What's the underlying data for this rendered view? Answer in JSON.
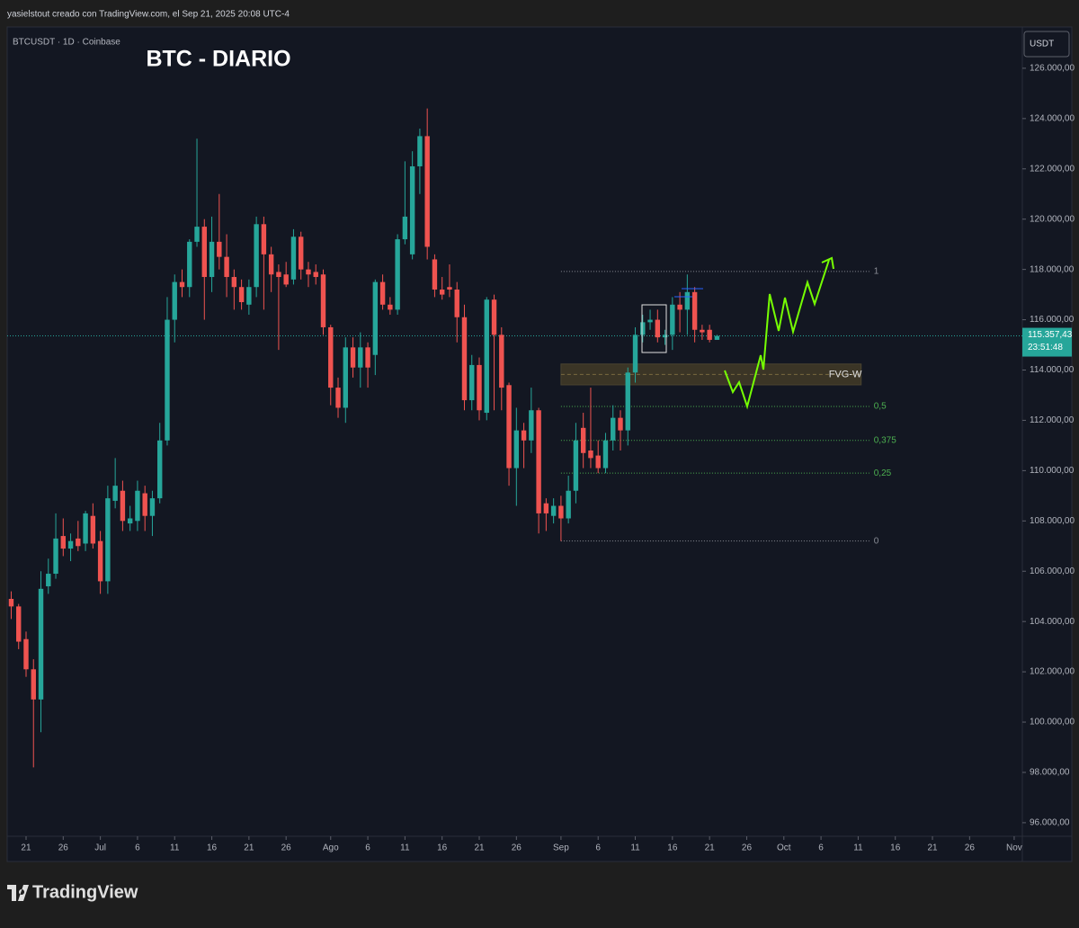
{
  "header": "yasielstout creado con TradingView.com, el Sep 21, 2025 20:08 UTC-4",
  "logo": "TradingView",
  "chart_data": {
    "type": "candlestick",
    "title": "BTC - DIARIO",
    "symbol": "BTCUSDT · 1D · Coinbase",
    "currency": "USDT",
    "up_color": "#26a69a",
    "down_color": "#ef5350",
    "grid": false,
    "xlim": [
      -0.54,
      136.1
    ],
    "ylim": [
      95460,
      127570
    ],
    "xticks": [
      {
        "value": 2,
        "label": "21"
      },
      {
        "value": 7,
        "label": "26"
      },
      {
        "value": 12,
        "label": "Jul"
      },
      {
        "value": 17,
        "label": "6"
      },
      {
        "value": 22,
        "label": "11"
      },
      {
        "value": 27,
        "label": "16"
      },
      {
        "value": 32,
        "label": "21"
      },
      {
        "value": 37,
        "label": "26"
      },
      {
        "value": 43,
        "label": "Ago"
      },
      {
        "value": 48,
        "label": "6"
      },
      {
        "value": 53,
        "label": "11"
      },
      {
        "value": 58,
        "label": "16"
      },
      {
        "value": 63,
        "label": "21"
      },
      {
        "value": 68,
        "label": "26"
      },
      {
        "value": 74,
        "label": "Sep"
      },
      {
        "value": 79,
        "label": "6"
      },
      {
        "value": 84,
        "label": "11"
      },
      {
        "value": 89,
        "label": "16"
      },
      {
        "value": 94,
        "label": "21"
      },
      {
        "value": 99,
        "label": "26"
      },
      {
        "value": 104,
        "label": "Oct"
      },
      {
        "value": 109,
        "label": "6"
      },
      {
        "value": 114,
        "label": "11"
      },
      {
        "value": 119,
        "label": "16"
      },
      {
        "value": 124,
        "label": "21"
      },
      {
        "value": 129,
        "label": "26"
      },
      {
        "value": 135,
        "label": "Nov"
      }
    ],
    "yticks": [
      {
        "value": 96000,
        "label": "96.000,00"
      },
      {
        "value": 98000,
        "label": "98.000,00"
      },
      {
        "value": 100000,
        "label": "100.000,00"
      },
      {
        "value": 102000,
        "label": "102.000,00"
      },
      {
        "value": 104000,
        "label": "104.000,00"
      },
      {
        "value": 106000,
        "label": "106.000,00"
      },
      {
        "value": 108000,
        "label": "108.000,00"
      },
      {
        "value": 110000,
        "label": "110.000,00"
      },
      {
        "value": 112000,
        "label": "112.000,00"
      },
      {
        "value": 114000,
        "label": "114.000,00"
      },
      {
        "value": 116000,
        "label": "116.000,00"
      },
      {
        "value": 118000,
        "label": "118.000,00"
      },
      {
        "value": 120000,
        "label": "120.000,00"
      },
      {
        "value": 122000,
        "label": "122.000,00"
      },
      {
        "value": 124000,
        "label": "124.000,00"
      },
      {
        "value": 126000,
        "label": "126.000,00"
      }
    ],
    "open": [
      104900,
      104600,
      103300,
      102100,
      100900,
      105400,
      105900,
      107400,
      106900,
      107300,
      107100,
      108200,
      107200,
      105600,
      108800,
      109200,
      107900,
      108000,
      109100,
      108200,
      108900,
      111200,
      116000,
      117500,
      117300,
      119100,
      119700,
      117700,
      119100,
      118500,
      117700,
      117300,
      116600,
      117300,
      119800,
      118600,
      117900,
      117800,
      117600,
      119300,
      118000,
      117900,
      117800,
      115700,
      113300,
      112500,
      114900,
      114100,
      114900,
      114600,
      117500,
      116600,
      116400,
      119200,
      118600,
      122100,
      123300,
      118400,
      117200,
      117300,
      117200,
      116100,
      112800,
      114200,
      112300,
      116800,
      115400,
      113400,
      110100,
      111600,
      111200,
      112400,
      108700,
      108200,
      108600,
      108100,
      109200,
      111700,
      110800,
      110600,
      110100,
      111200,
      112100,
      111600,
      113900,
      115400,
      115900,
      116000,
      115300,
      115400,
      116600,
      116400,
      117100,
      115600,
      115600,
      115200
    ],
    "high": [
      105200,
      104700,
      103600,
      102500,
      106000,
      106500,
      108300,
      108100,
      107500,
      108000,
      108400,
      108700,
      107600,
      109400,
      110500,
      109600,
      108600,
      109600,
      109400,
      109200,
      111900,
      116900,
      117800,
      118000,
      119200,
      123200,
      120000,
      120100,
      121000,
      119400,
      118000,
      117600,
      117600,
      120100,
      120100,
      118900,
      118200,
      118300,
      119600,
      119500,
      118300,
      118200,
      118000,
      115800,
      113700,
      115300,
      115300,
      115500,
      115100,
      117600,
      117800,
      116900,
      119400,
      122300,
      122700,
      123600,
      124400,
      118600,
      117700,
      118200,
      117500,
      116600,
      114600,
      114500,
      116900,
      117000,
      115700,
      113500,
      112500,
      111900,
      113300,
      112500,
      108900,
      108900,
      109000,
      109800,
      111900,
      112300,
      113300,
      111200,
      111500,
      112600,
      112400,
      114100,
      115700,
      116200,
      116400,
      116400,
      115600,
      116900,
      117100,
      117800,
      117300,
      115800,
      115800,
      115400
    ],
    "low": [
      104100,
      102900,
      101800,
      98200,
      99600,
      105100,
      105700,
      106600,
      106400,
      106800,
      106800,
      106900,
      105100,
      105100,
      108500,
      107600,
      107600,
      107600,
      107600,
      107400,
      108700,
      111000,
      115100,
      116900,
      116900,
      118900,
      116000,
      117100,
      118000,
      116900,
      116400,
      116400,
      116200,
      116900,
      116400,
      117100,
      114800,
      117300,
      117400,
      117600,
      117300,
      117400,
      115400,
      112600,
      112100,
      111900,
      113700,
      113300,
      113300,
      113800,
      116400,
      116200,
      116200,
      119000,
      118400,
      121000,
      118400,
      116900,
      116800,
      116900,
      115100,
      112400,
      112400,
      112000,
      112000,
      112400,
      112400,
      109400,
      108600,
      110100,
      110700,
      107500,
      107600,
      107900,
      107200,
      107900,
      108700,
      110100,
      110100,
      109900,
      109900,
      110800,
      110800,
      111000,
      113500,
      115100,
      115600,
      115100,
      115000,
      114800,
      115500,
      115400,
      115100,
      115200,
      115100,
      115200
    ],
    "close": [
      104600,
      103200,
      102100,
      100900,
      105300,
      105900,
      107300,
      106900,
      107200,
      107000,
      108300,
      107100,
      105600,
      108900,
      109400,
      108000,
      108100,
      109200,
      108200,
      108900,
      111200,
      116000,
      117500,
      117300,
      119100,
      119700,
      117700,
      119100,
      118500,
      117700,
      117300,
      116700,
      117300,
      119800,
      118600,
      117800,
      117700,
      117400,
      119300,
      118000,
      117800,
      117700,
      115700,
      113300,
      112500,
      114900,
      114100,
      114900,
      114100,
      117500,
      116600,
      116400,
      119200,
      120100,
      122100,
      123300,
      118900,
      117200,
      117000,
      117200,
      116100,
      112800,
      114200,
      112400,
      116800,
      115400,
      113300,
      110100,
      111600,
      111200,
      112400,
      108300,
      108300,
      108600,
      108100,
      109200,
      111200,
      110700,
      110500,
      110100,
      111200,
      112100,
      111600,
      113900,
      115400,
      115900,
      116000,
      115300,
      115400,
      116600,
      116400,
      117100,
      115600,
      115500,
      115200,
      115357.43
    ],
    "last_price": {
      "value": 115357.43,
      "label": "115.357,43",
      "countdown": "23:51:48"
    },
    "fib_levels": [
      {
        "value": 117920,
        "label": "1",
        "color": "#8a8d96"
      },
      {
        "value": 112550,
        "label": "0,5",
        "color": "#4caf50"
      },
      {
        "value": 111200,
        "label": "0,375",
        "color": "#4caf50"
      },
      {
        "value": 109900,
        "label": "0,25",
        "color": "#4caf50"
      },
      {
        "value": 107200,
        "label": "0",
        "color": "#8a8d96"
      }
    ],
    "fvg": {
      "label": "FVG-W",
      "top": 114240,
      "bottom": 113410
    }
  }
}
